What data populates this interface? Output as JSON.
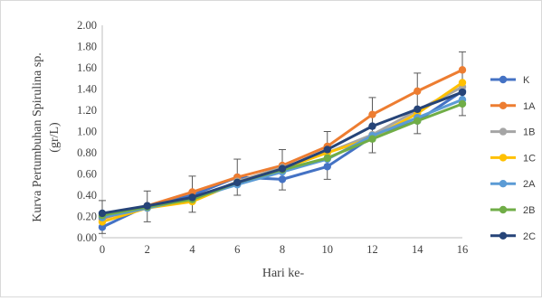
{
  "chart_data": {
    "type": "line",
    "xlabel": "Hari ke-",
    "ylabel_line1": "Kurva Pertumbuhan  Spirulina sp.",
    "ylabel_line2": "(gr/L)",
    "x": [
      0,
      2,
      4,
      6,
      8,
      10,
      12,
      14,
      16
    ],
    "x_tick_labels": [
      "0",
      "2",
      "4",
      "6",
      "8",
      "10",
      "12",
      "14",
      "16"
    ],
    "ylim": [
      0,
      2
    ],
    "y_tick_labels": [
      "0.00",
      "0.20",
      "0.40",
      "0.60",
      "0.80",
      "1.00",
      "1.20",
      "1.40",
      "1.60",
      "1.80",
      "2.00"
    ],
    "grid": false,
    "legend_position": "right",
    "series": [
      {
        "name": "K",
        "color": "#4472C4",
        "values": [
          0.1,
          0.3,
          0.4,
          0.57,
          0.55,
          0.67,
          0.95,
          1.1,
          1.38
        ]
      },
      {
        "name": "1A",
        "color": "#ED7D31",
        "values": [
          0.18,
          0.3,
          0.43,
          0.57,
          0.68,
          0.86,
          1.16,
          1.38,
          1.58
        ]
      },
      {
        "name": "1B",
        "color": "#A5A5A5",
        "values": [
          0.2,
          0.3,
          0.35,
          0.53,
          0.66,
          0.8,
          0.97,
          1.2,
          1.42
        ]
      },
      {
        "name": "1C",
        "color": "#FFC000",
        "values": [
          0.15,
          0.28,
          0.34,
          0.52,
          0.65,
          0.8,
          0.94,
          1.17,
          1.46
        ]
      },
      {
        "name": "2A",
        "color": "#5B9BD5",
        "values": [
          0.19,
          0.28,
          0.37,
          0.5,
          0.62,
          0.74,
          0.96,
          1.13,
          1.3
        ]
      },
      {
        "name": "2B",
        "color": "#70AD47",
        "values": [
          0.21,
          0.29,
          0.36,
          0.52,
          0.64,
          0.75,
          0.93,
          1.1,
          1.26
        ]
      },
      {
        "name": "2C",
        "color": "#264478",
        "values": [
          0.23,
          0.3,
          0.38,
          0.52,
          0.65,
          0.83,
          1.05,
          1.21,
          1.37
        ]
      }
    ],
    "error_bars": {
      "series": "1A",
      "lower": [
        0.04,
        0.15,
        0.24,
        0.4,
        0.45,
        0.55,
        0.8,
        0.98,
        1.15
      ],
      "upper": [
        0.35,
        0.44,
        0.58,
        0.74,
        0.83,
        1.0,
        1.32,
        1.55,
        1.75
      ]
    }
  }
}
